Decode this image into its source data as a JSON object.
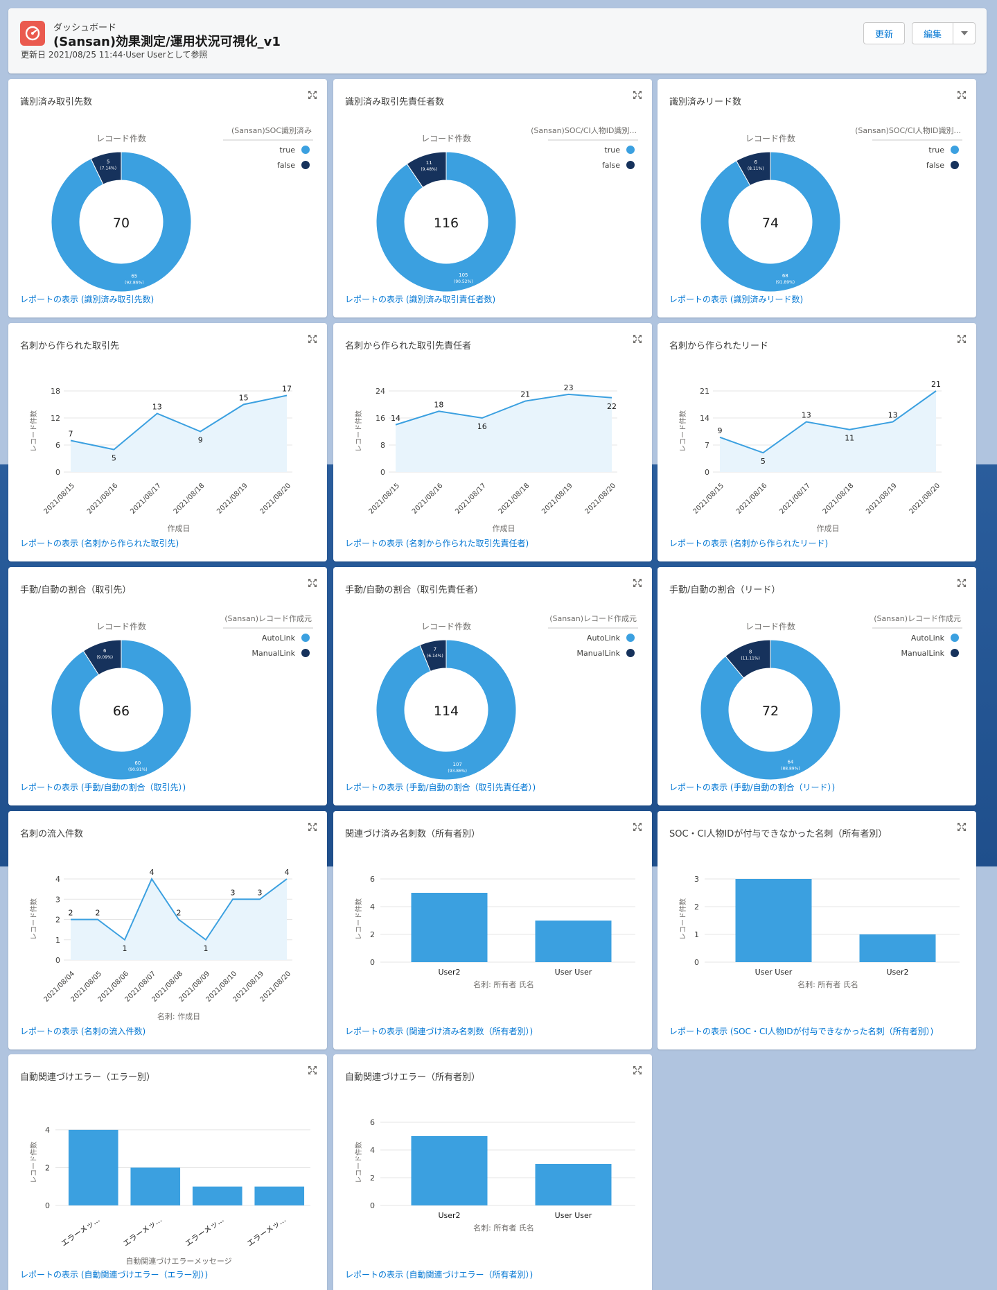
{
  "header": {
    "eyebrow": "ダッシュボード",
    "title": "(Sansan)効果測定/運用状況可視化_v1",
    "sub": "更新日 2021/08/25 11:44·User Userとして参照",
    "refresh_label": "更新",
    "edit_label": "編集"
  },
  "colors": {
    "light": "#3ba0e0",
    "dark": "#16325c",
    "area": "#e8f4fc"
  },
  "cards": [
    {
      "title": "識別済み取引先数",
      "link": "レポートの表示 (識別済み取引先数)"
    },
    {
      "title": "識別済み取引先責任者数",
      "link": "レポートの表示 (識別済み取引責任者数)"
    },
    {
      "title": "識別済みリード数",
      "link": "レポートの表示 (識別済みリード数)"
    },
    {
      "title": "名刺から作られた取引先",
      "link": "レポートの表示 (名刺から作られた取引先)"
    },
    {
      "title": "名刺から作られた取引先責任者",
      "link": "レポートの表示 (名刺から作られた取引先責任者)"
    },
    {
      "title": "名刺から作られたリード",
      "link": "レポートの表示 (名刺から作られたリード)"
    },
    {
      "title": "手動/自動の割合（取引先）",
      "link": "レポートの表示 (手動/自動の割合（取引先）)"
    },
    {
      "title": "手動/自動の割合（取引先責任者）",
      "link": "レポートの表示 (手動/自動の割合（取引先責任者）)"
    },
    {
      "title": "手動/自動の割合（リード）",
      "link": "レポートの表示 (手動/自動の割合（リード）)"
    },
    {
      "title": "名刺の流入件数",
      "link": "レポートの表示 (名刺の流入件数)"
    },
    {
      "title": "関連づけ済み名刺数（所有者別）",
      "link": "レポートの表示 (関連づけ済み名刺数（所有者別）)"
    },
    {
      "title": "SOC・CI人物IDが付与できなかった名刺（所有者別）",
      "link": "レポートの表示 (SOC・CI人物IDが付与できなかった名刺（所有者別）)"
    },
    {
      "title": "自動関連づけエラー（エラー別）",
      "link": "レポートの表示 (自動関連づけエラー（エラー別）)"
    },
    {
      "title": "自動関連づけエラー（所有者別）",
      "link": "レポートの表示 (自動関連づけエラー（所有者別）)"
    }
  ],
  "chart_data": [
    {
      "type": "pie",
      "subtitle": "レコード件数",
      "legend_title": "(Sansan)SOC識別済み",
      "total": "70",
      "slices": [
        {
          "name": "true",
          "value": 65,
          "label": "65",
          "pct": "(92.86%)"
        },
        {
          "name": "false",
          "value": 5,
          "label": "5",
          "pct": "(7.14%)"
        }
      ]
    },
    {
      "type": "pie",
      "subtitle": "レコード件数",
      "legend_title": "(Sansan)SOC/CI人物ID識別...",
      "total": "116",
      "slices": [
        {
          "name": "true",
          "value": 105,
          "label": "105",
          "pct": "(90.52%)"
        },
        {
          "name": "false",
          "value": 11,
          "label": "11",
          "pct": "(9.48%)"
        }
      ]
    },
    {
      "type": "pie",
      "subtitle": "レコード件数",
      "legend_title": "(Sansan)SOC/CI人物ID識別...",
      "total": "74",
      "slices": [
        {
          "name": "true",
          "value": 68,
          "label": "68",
          "pct": "(91.89%)"
        },
        {
          "name": "false",
          "value": 6,
          "label": "6",
          "pct": "(8.11%)"
        }
      ]
    },
    {
      "type": "line",
      "ylabel": "レコード件数",
      "xlabel": "作成日",
      "yticks": [
        0,
        6,
        12,
        18
      ],
      "ylim": [
        0,
        18
      ],
      "x": [
        "2021/08/15",
        "2021/08/16",
        "2021/08/17",
        "2021/08/18",
        "2021/08/19",
        "2021/08/20"
      ],
      "values": [
        7,
        5,
        13,
        9,
        15,
        17
      ]
    },
    {
      "type": "line",
      "ylabel": "レコード件数",
      "xlabel": "作成日",
      "yticks": [
        0,
        8,
        16,
        24
      ],
      "ylim": [
        0,
        24
      ],
      "x": [
        "2021/08/15",
        "2021/08/16",
        "2021/08/17",
        "2021/08/18",
        "2021/08/19",
        "2021/08/20"
      ],
      "values": [
        14,
        18,
        16,
        21,
        23,
        22
      ]
    },
    {
      "type": "line",
      "ylabel": "レコード件数",
      "xlabel": "作成日",
      "yticks": [
        0,
        7,
        14,
        21
      ],
      "ylim": [
        0,
        21
      ],
      "x": [
        "2021/08/15",
        "2021/08/16",
        "2021/08/17",
        "2021/08/18",
        "2021/08/19",
        "2021/08/20"
      ],
      "values": [
        9,
        5,
        13,
        11,
        13,
        21
      ]
    },
    {
      "type": "pie",
      "subtitle": "レコード件数",
      "legend_title": "(Sansan)レコード作成元",
      "total": "66",
      "slices": [
        {
          "name": "AutoLink",
          "value": 60,
          "label": "60",
          "pct": "(90.91%)"
        },
        {
          "name": "ManualLink",
          "value": 6,
          "label": "6",
          "pct": "(9.09%)"
        }
      ]
    },
    {
      "type": "pie",
      "subtitle": "レコード件数",
      "legend_title": "(Sansan)レコード作成元",
      "total": "114",
      "slices": [
        {
          "name": "AutoLink",
          "value": 107,
          "label": "107",
          "pct": "(93.86%)"
        },
        {
          "name": "ManualLink",
          "value": 7,
          "label": "7",
          "pct": "(6.14%)"
        }
      ]
    },
    {
      "type": "pie",
      "subtitle": "レコード件数",
      "legend_title": "(Sansan)レコード作成元",
      "total": "72",
      "slices": [
        {
          "name": "AutoLink",
          "value": 64,
          "label": "64",
          "pct": "(88.89%)"
        },
        {
          "name": "ManualLink",
          "value": 8,
          "label": "8",
          "pct": "(11.11%)"
        }
      ]
    },
    {
      "type": "line",
      "ylabel": "レコード件数",
      "xlabel": "名刺: 作成日",
      "yticks": [
        0,
        1,
        2,
        3,
        4
      ],
      "ylim": [
        0,
        4
      ],
      "x": [
        "2021/08/04",
        "2021/08/05",
        "2021/08/06",
        "2021/08/07",
        "2021/08/08",
        "2021/08/09",
        "2021/08/10",
        "2021/08/19",
        "2021/08/20"
      ],
      "values": [
        2,
        2,
        1,
        4,
        2,
        1,
        3,
        3,
        4
      ]
    },
    {
      "type": "bar",
      "ylabel": "レコード件数",
      "xlabel": "名刺: 所有者 氏名",
      "yticks": [
        0,
        2,
        4,
        6
      ],
      "ylim": [
        0,
        6
      ],
      "categories": [
        "User2",
        "User User"
      ],
      "values": [
        5,
        3
      ]
    },
    {
      "type": "bar",
      "ylabel": "レコード件数",
      "xlabel": "名刺: 所有者 氏名",
      "yticks": [
        0,
        1,
        2,
        3
      ],
      "ylim": [
        0,
        3
      ],
      "categories": [
        "User User",
        "User2"
      ],
      "values": [
        3,
        1
      ]
    },
    {
      "type": "bar",
      "ylabel": "レコード件数",
      "xlabel": "自動関連づけエラーメッセージ",
      "yticks": [
        0,
        2,
        4
      ],
      "ylim": [
        0,
        4.4
      ],
      "rotate": true,
      "categories": [
        "エラーメッ...",
        "エラーメッ...",
        "エラーメッ...",
        "エラーメッ..."
      ],
      "values": [
        4,
        2,
        1,
        1
      ]
    },
    {
      "type": "bar",
      "ylabel": "レコード件数",
      "xlabel": "名刺: 所有者 氏名",
      "yticks": [
        0,
        2,
        4,
        6
      ],
      "ylim": [
        0,
        6
      ],
      "categories": [
        "User2",
        "User User"
      ],
      "values": [
        5,
        3
      ]
    }
  ]
}
